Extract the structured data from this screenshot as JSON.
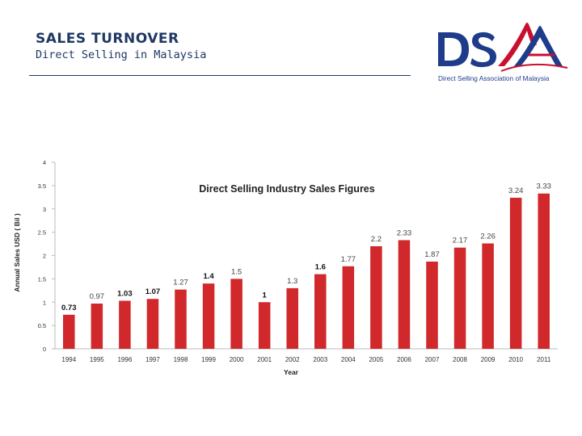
{
  "header": {
    "title": "SALES TURNOVER",
    "subtitle": "Direct Selling in Malaysia"
  },
  "logo": {
    "tagline": "Direct Selling Association of Malaysia",
    "colors": {
      "navy": "#1f3c8a",
      "red": "#c8102e"
    }
  },
  "chart_data": {
    "type": "bar",
    "title": "Direct Selling Industry Sales Figures",
    "xlabel": "Year",
    "ylabel": "Annual Sales USD ( Bil )",
    "ylim": [
      0,
      4
    ],
    "yticks": [
      0,
      0.5,
      1,
      1.5,
      2,
      2.5,
      3,
      3.5,
      4
    ],
    "ytick_labels": [
      "0",
      "0.5",
      "1",
      "1.5",
      "2",
      "2.5",
      "3",
      "3.5",
      "4"
    ],
    "grid": false,
    "bar_color": "#d0282b",
    "categories": [
      "1994",
      "1995",
      "1996",
      "1997",
      "1998",
      "1999",
      "2000",
      "2001",
      "2002",
      "2003",
      "2004",
      "2005",
      "2006",
      "2007",
      "2008",
      "2009",
      "2010",
      "2011"
    ],
    "values": [
      0.73,
      0.97,
      1.03,
      1.07,
      1.27,
      1.4,
      1.5,
      1,
      1.3,
      1.6,
      1.77,
      2.2,
      2.33,
      1.87,
      2.17,
      2.26,
      3.24,
      3.33
    ],
    "data_labels": [
      "0.73",
      "0.97",
      "1.03",
      "1.07",
      "1.27",
      "1.4",
      "1.5",
      "1",
      "1.3",
      "1.6",
      "1.77",
      "2.2",
      "2.33",
      "1.87",
      "2.17",
      "2.26",
      "3.24",
      "3.33"
    ],
    "bold_labels": [
      true,
      false,
      true,
      true,
      false,
      true,
      false,
      true,
      false,
      true,
      false,
      false,
      false,
      false,
      false,
      false,
      false,
      false
    ]
  }
}
